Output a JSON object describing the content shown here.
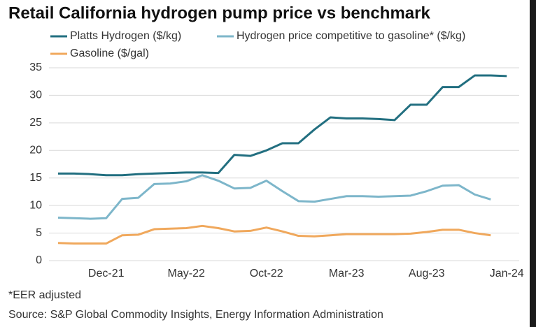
{
  "chart_data": {
    "type": "line",
    "title": "Retail California hydrogen pump price vs benchmark",
    "notes": [
      "*EER adjusted",
      "Source: S&P Global Commodity Insights, Energy Information Administration"
    ],
    "categories": [
      null,
      null,
      null,
      "Dec-21",
      null,
      null,
      null,
      null,
      "May-22",
      null,
      null,
      null,
      null,
      "Oct-22",
      null,
      null,
      null,
      null,
      "Mar-23",
      null,
      null,
      null,
      null,
      "Aug-23",
      null,
      null,
      null,
      null,
      "Jan-24"
    ],
    "series": [
      {
        "name": "Platts Hydrogen ($/kg)",
        "color": "#226f80",
        "values": [
          15.8,
          15.8,
          15.7,
          15.5,
          15.5,
          15.7,
          15.8,
          15.9,
          16.0,
          16.0,
          15.9,
          19.2,
          19.0,
          20.0,
          21.3,
          21.3,
          23.8,
          26.0,
          25.8,
          25.8,
          25.7,
          25.5,
          28.3,
          28.3,
          31.5,
          31.5,
          33.6,
          33.6,
          33.5
        ]
      },
      {
        "name": "Hydrogen price competitive to gasoline* ($/kg)",
        "color": "#7db6ca",
        "values": [
          7.8,
          7.7,
          7.6,
          7.7,
          11.2,
          11.4,
          13.9,
          14.0,
          14.4,
          15.5,
          14.5,
          13.1,
          13.2,
          14.5,
          12.6,
          10.8,
          10.7,
          11.2,
          11.7,
          11.7,
          11.6,
          11.7,
          11.8,
          12.6,
          13.6,
          13.7,
          12.0,
          11.1,
          null
        ]
      },
      {
        "name": "Gasoline ($/gal)",
        "color": "#f0a85c",
        "values": [
          3.2,
          3.1,
          3.1,
          3.1,
          4.6,
          4.7,
          5.7,
          5.8,
          5.9,
          6.3,
          5.9,
          5.3,
          5.4,
          6.0,
          5.3,
          4.5,
          4.4,
          4.6,
          4.8,
          4.8,
          4.8,
          4.8,
          4.9,
          5.2,
          5.6,
          5.6,
          5.0,
          4.6,
          null
        ]
      }
    ],
    "ylim": [
      0,
      35
    ],
    "yticks": [
      0,
      5,
      10,
      15,
      20,
      25,
      30,
      35
    ],
    "grid": true
  }
}
